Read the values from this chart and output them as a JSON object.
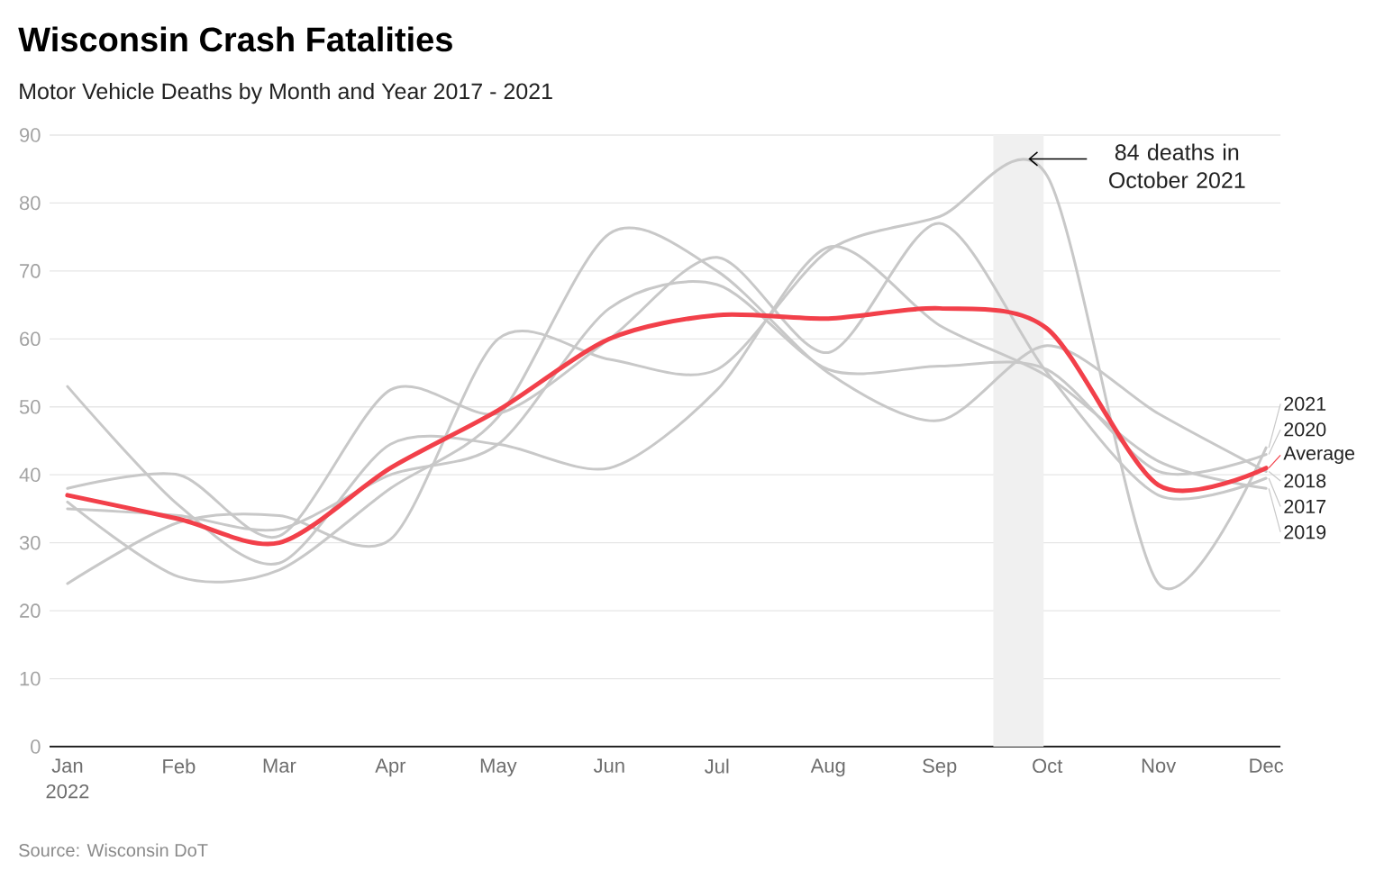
{
  "chart_data": {
    "type": "line",
    "title": "Wisconsin Crash Fatalities",
    "subtitle": "Motor Vehicle Deaths by Month and Year 2017 - 2021",
    "x": [
      "2022-01",
      "2022-02",
      "2022-03",
      "2022-04",
      "2022-05",
      "2022-06",
      "2022-07",
      "2022-08",
      "2022-09",
      "2022-10",
      "2022-11",
      "2022-12"
    ],
    "series": [
      {
        "name": "2017",
        "color": "#c8c8c8",
        "values": [
          38,
          40,
          31,
          52.5,
          49,
          60,
          72,
          58,
          77,
          55,
          37,
          39.5
        ]
      },
      {
        "name": "2018",
        "color": "#c8c8c8",
        "values": [
          36,
          25,
          26,
          38,
          48.5,
          75.5,
          70,
          55,
          48,
          59,
          49,
          40.5
        ]
      },
      {
        "name": "2019",
        "color": "#c8c8c8",
        "values": [
          53,
          35.5,
          27,
          44.5,
          44.5,
          41,
          52.5,
          73.5,
          62,
          54.5,
          42,
          38
        ]
      },
      {
        "name": "2020",
        "color": "#c8c8c8",
        "values": [
          35,
          34,
          32,
          40,
          44.5,
          64.5,
          68,
          55.5,
          56,
          55.5,
          40.5,
          43
        ]
      },
      {
        "name": "2021",
        "color": "#c8c8c8",
        "values": [
          24,
          33,
          34,
          30.5,
          60,
          57,
          55.5,
          73,
          78,
          84,
          24,
          44
        ]
      },
      {
        "name": "Average",
        "color": "#f2404a",
        "values": [
          37,
          33.5,
          30,
          41,
          49.5,
          60,
          63.5,
          63,
          64.5,
          61.5,
          38.5,
          41
        ]
      }
    ],
    "xlim": [
      "2021-12-27",
      "2022-12-05"
    ],
    "xticks": [
      {
        "value": "2022-01",
        "label": "Jan 2022"
      },
      {
        "value": "2022-02",
        "label": "Feb"
      },
      {
        "value": "2022-03",
        "label": "Mar"
      },
      {
        "value": "2022-04",
        "label": "Apr"
      },
      {
        "value": "2022-05",
        "label": "May"
      },
      {
        "value": "2022-06",
        "label": "Jun"
      },
      {
        "value": "2022-07",
        "label": "Jul"
      },
      {
        "value": "2022-08",
        "label": "Aug"
      },
      {
        "value": "2022-09",
        "label": "Sep"
      },
      {
        "value": "2022-10",
        "label": "Oct"
      },
      {
        "value": "2022-11",
        "label": "Nov"
      },
      {
        "value": "2022-12",
        "label": "Dec"
      }
    ],
    "ylim": [
      0,
      90
    ],
    "yticks": [
      0,
      10,
      20,
      30,
      40,
      50,
      60,
      70,
      80,
      90
    ],
    "grid": "y",
    "legend": "right",
    "bands": [
      {
        "axis": "x",
        "from": "2022-09-16",
        "to": "2022-09-30",
        "color": "#f0f0f0"
      }
    ],
    "annotations": [
      {
        "text": "84 deaths in October 2021",
        "x": "2022-09-25",
        "y": 86.5
      },
      "Source: Wisconsin DoT"
    ]
  }
}
